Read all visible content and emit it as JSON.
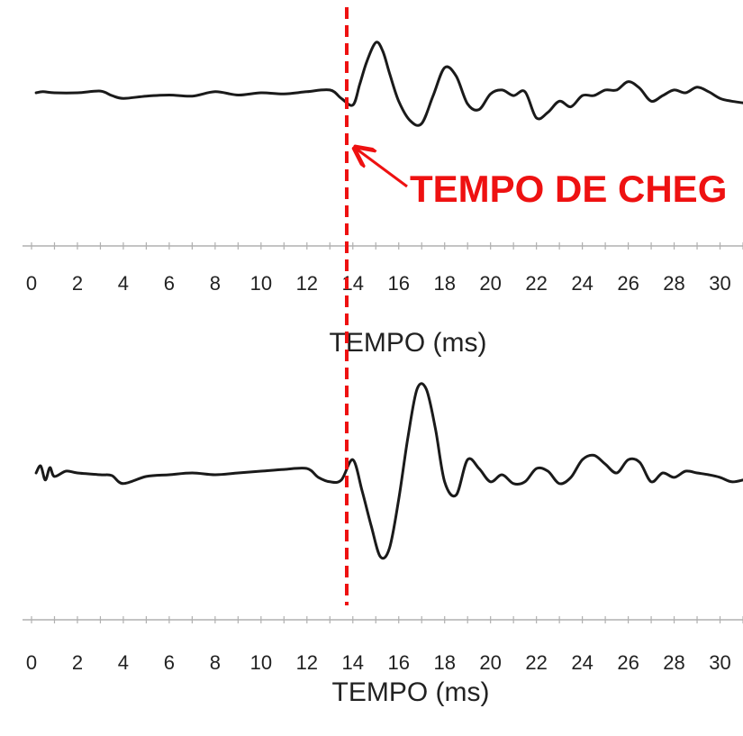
{
  "colors": {
    "trace": "#1a1a1a",
    "axis": "#b0b0b0",
    "tick_text": "#222222",
    "marker": "#ee1111"
  },
  "annotation": {
    "text": "TEMPO DE CHEG",
    "marker_x": 14
  },
  "chart_data": [
    {
      "type": "line",
      "xlabel": "TEMPO (ms)",
      "ylabel": "",
      "title": "",
      "xlim": [
        0,
        31
      ],
      "ylim": [
        -1,
        1
      ],
      "xticks": [
        0,
        2,
        4,
        6,
        8,
        10,
        12,
        14,
        16,
        18,
        20,
        22,
        24,
        26,
        28,
        30
      ],
      "xticks_labels": [
        "0",
        "2",
        "4",
        "6",
        "8",
        "10",
        "12",
        "14",
        "16",
        "18",
        "20",
        "22",
        "24",
        "26",
        "28",
        "30"
      ],
      "grid": false,
      "series": [
        {
          "x": [
            0.2,
            0.5,
            1.0,
            2.0,
            3.0,
            3.5,
            4.0,
            5.0,
            6.0,
            7.0,
            8.0,
            9.0,
            10.0,
            11.0,
            12.0,
            13.0,
            13.5,
            14.0,
            14.3,
            14.6,
            15.0,
            15.3,
            15.6,
            16.0,
            16.5,
            17.0,
            17.5,
            18.0,
            18.5,
            19.0,
            19.5,
            20.0,
            20.5,
            21.0,
            21.5,
            22.0,
            22.5,
            23.0,
            23.5,
            24.0,
            24.5,
            25.0,
            25.5,
            26.0,
            26.5,
            27.0,
            27.5,
            28.0,
            28.5,
            29.0,
            29.5,
            30.0,
            30.5,
            31.0
          ],
          "y": [
            0.0,
            0.02,
            0.0,
            0.0,
            0.03,
            -0.05,
            -0.1,
            -0.06,
            -0.04,
            -0.06,
            0.02,
            -0.04,
            0.0,
            -0.02,
            0.02,
            0.05,
            -0.1,
            -0.22,
            0.15,
            0.55,
            0.9,
            0.75,
            0.35,
            -0.15,
            -0.5,
            -0.55,
            -0.05,
            0.45,
            0.3,
            -0.2,
            -0.3,
            -0.02,
            0.05,
            -0.05,
            0.02,
            -0.45,
            -0.35,
            -0.15,
            -0.25,
            -0.05,
            -0.05,
            0.05,
            0.05,
            0.2,
            0.08,
            -0.15,
            -0.05,
            0.05,
            0.0,
            0.1,
            0.02,
            -0.1,
            -0.15,
            -0.18
          ]
        }
      ]
    },
    {
      "type": "line",
      "xlabel": "TEMPO (ms)",
      "ylabel": "",
      "title": "",
      "xlim": [
        0,
        31
      ],
      "ylim": [
        -1,
        1
      ],
      "xticks": [
        0,
        2,
        4,
        6,
        8,
        10,
        12,
        14,
        16,
        18,
        20,
        22,
        24,
        26,
        28,
        30
      ],
      "xticks_labels": [
        "0",
        "2",
        "4",
        "6",
        "8",
        "10",
        "12",
        "14",
        "16",
        "18",
        "20",
        "22",
        "24",
        "26",
        "28",
        "30"
      ],
      "grid": false,
      "series": [
        {
          "x": [
            0.2,
            0.4,
            0.6,
            0.8,
            1.0,
            1.5,
            2.0,
            3.0,
            3.5,
            4.0,
            5.0,
            6.0,
            7.0,
            8.0,
            9.0,
            10.0,
            11.0,
            12.0,
            12.5,
            13.0,
            13.5,
            14.0,
            14.4,
            14.8,
            15.2,
            15.6,
            16.0,
            16.4,
            16.8,
            17.2,
            17.6,
            18.0,
            18.5,
            19.0,
            19.5,
            20.0,
            20.5,
            21.0,
            21.5,
            22.0,
            22.5,
            23.0,
            23.5,
            24.0,
            24.5,
            25.0,
            25.5,
            26.0,
            26.5,
            27.0,
            27.5,
            28.0,
            28.5,
            29.0,
            29.5,
            30.0,
            30.5,
            31.0
          ],
          "y": [
            0.0,
            0.08,
            -0.08,
            0.06,
            -0.04,
            0.02,
            0.0,
            -0.02,
            -0.03,
            -0.12,
            -0.04,
            -0.02,
            0.0,
            -0.02,
            0.0,
            0.02,
            0.04,
            0.05,
            -0.05,
            -0.1,
            -0.08,
            0.15,
            -0.2,
            -0.6,
            -0.95,
            -0.85,
            -0.3,
            0.4,
            0.95,
            0.95,
            0.5,
            -0.1,
            -0.25,
            0.15,
            0.05,
            -0.1,
            -0.02,
            -0.12,
            -0.1,
            0.05,
            0.02,
            -0.12,
            -0.05,
            0.15,
            0.2,
            0.1,
            0.0,
            0.15,
            0.12,
            -0.1,
            0.0,
            -0.05,
            0.02,
            0.0,
            -0.02,
            -0.05,
            -0.1,
            -0.08
          ]
        }
      ]
    }
  ]
}
